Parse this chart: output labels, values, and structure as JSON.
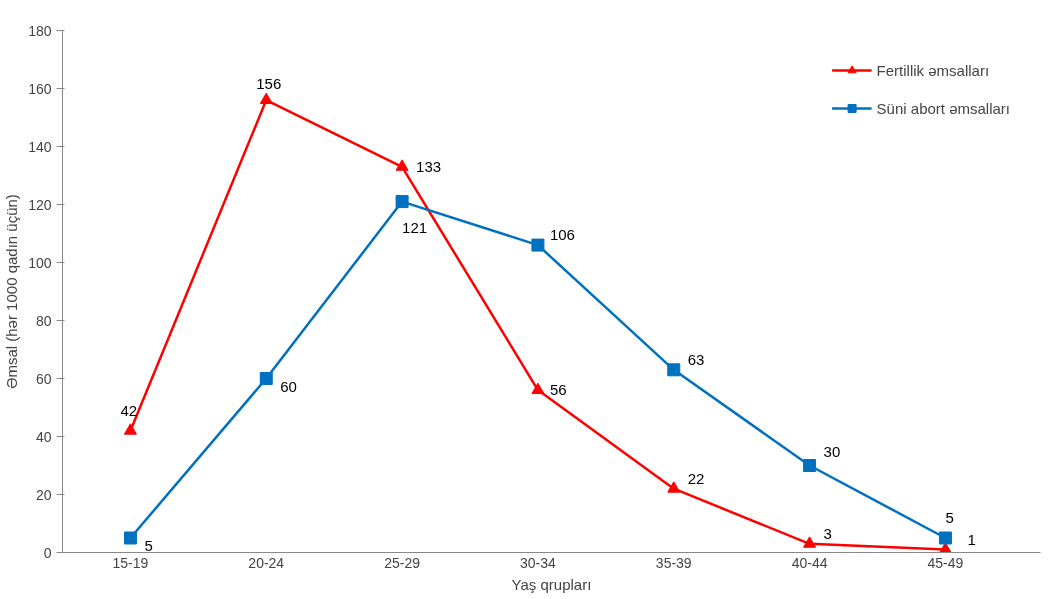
{
  "chart_data": {
    "type": "line",
    "xlabel": "Yaş qrupları",
    "ylabel": "Əmsal (hər 1000 qadın üçün)",
    "categories": [
      "15-19",
      "20-24",
      "25-29",
      "30-34",
      "35-39",
      "40-44",
      "45-49"
    ],
    "series": [
      {
        "name": "Fertillik əmsalları",
        "color": "#ff0000",
        "marker": "triangle",
        "values": [
          42,
          156,
          133,
          56,
          22,
          3,
          1
        ]
      },
      {
        "name": "Süni abort əmsalları",
        "color": "#0070c0",
        "marker": "square",
        "values": [
          5,
          60,
          121,
          106,
          63,
          30,
          5
        ]
      }
    ],
    "ylim": [
      0,
      180
    ],
    "yticks": [
      0,
      20,
      40,
      60,
      80,
      100,
      120,
      140,
      160,
      180
    ],
    "grid": false,
    "legend": "top right",
    "data_labels": true
  }
}
